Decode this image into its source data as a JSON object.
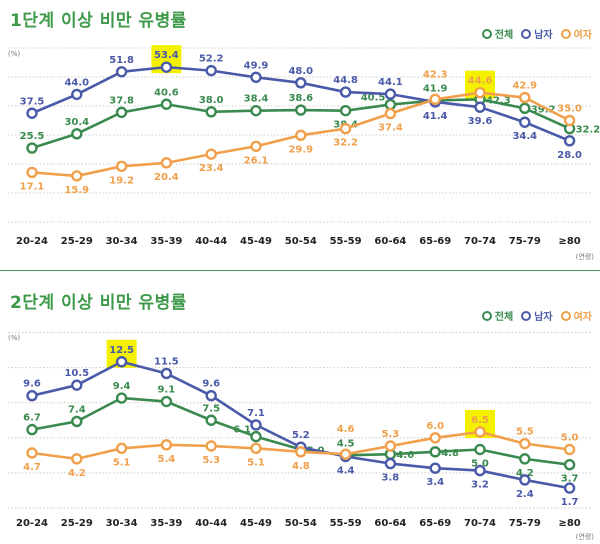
{
  "colors": {
    "total": "#3a8a4f",
    "male": "#4a5aa8",
    "female": "#f0a04b",
    "highlight": "#f3f000",
    "title": "#3e9a4a"
  },
  "legend": {
    "total": "전체",
    "male": "남자",
    "female": "여자"
  },
  "chart_data": [
    {
      "type": "line",
      "title": "1단계 이상 비만 유병률",
      "ylabel": "(%)",
      "xlabel": "(연령)",
      "ylim": [
        0,
        60
      ],
      "grid": true,
      "legend_position": "top-right",
      "categories": [
        "20-24",
        "25-29",
        "30-34",
        "35-39",
        "40-44",
        "45-49",
        "50-54",
        "55-59",
        "60-64",
        "65-69",
        "70-74",
        "75-79",
        "≥80"
      ],
      "series": [
        {
          "key": "total",
          "name": "전체",
          "values": [
            25.5,
            30.4,
            37.8,
            40.6,
            38.0,
            38.4,
            38.6,
            38.4,
            40.5,
            41.9,
            42.3,
            39.2,
            32.2
          ]
        },
        {
          "key": "male",
          "name": "남자",
          "values": [
            37.5,
            44.0,
            51.8,
            53.4,
            52.2,
            49.9,
            48.0,
            44.8,
            44.1,
            41.4,
            39.6,
            34.4,
            28.0
          ]
        },
        {
          "key": "female",
          "name": "여자",
          "values": [
            17.1,
            15.9,
            19.2,
            20.4,
            23.4,
            26.1,
            29.9,
            32.2,
            37.4,
            42.3,
            44.6,
            42.9,
            35.0
          ]
        }
      ],
      "highlights": [
        {
          "series": "male",
          "category": "35-39"
        },
        {
          "series": "female",
          "category": "70-74"
        }
      ]
    },
    {
      "type": "line",
      "title": "2단계 이상 비만 유병률",
      "ylabel": "(%)",
      "xlabel": "(연령)",
      "ylim": [
        0,
        15
      ],
      "grid": true,
      "legend_position": "top-right",
      "categories": [
        "20-24",
        "25-29",
        "30-34",
        "35-39",
        "40-44",
        "45-49",
        "50-54",
        "55-59",
        "60-64",
        "65-69",
        "70-74",
        "75-79",
        "≥80"
      ],
      "series": [
        {
          "key": "total",
          "name": "전체",
          "values": [
            6.7,
            7.4,
            9.4,
            9.1,
            7.5,
            6.1,
            5.0,
            4.5,
            4.6,
            4.8,
            5.0,
            4.2,
            3.7
          ]
        },
        {
          "key": "male",
          "name": "남자",
          "values": [
            9.6,
            10.5,
            12.5,
            11.5,
            9.6,
            7.1,
            5.2,
            4.4,
            3.8,
            3.4,
            3.2,
            2.4,
            1.7
          ]
        },
        {
          "key": "female",
          "name": "여자",
          "values": [
            4.7,
            4.2,
            5.1,
            5.4,
            5.3,
            5.1,
            4.8,
            4.6,
            5.3,
            6.0,
            6.5,
            5.5,
            5.0
          ]
        }
      ],
      "highlights": [
        {
          "series": "male",
          "category": "30-34"
        },
        {
          "series": "female",
          "category": "70-74"
        }
      ]
    }
  ]
}
